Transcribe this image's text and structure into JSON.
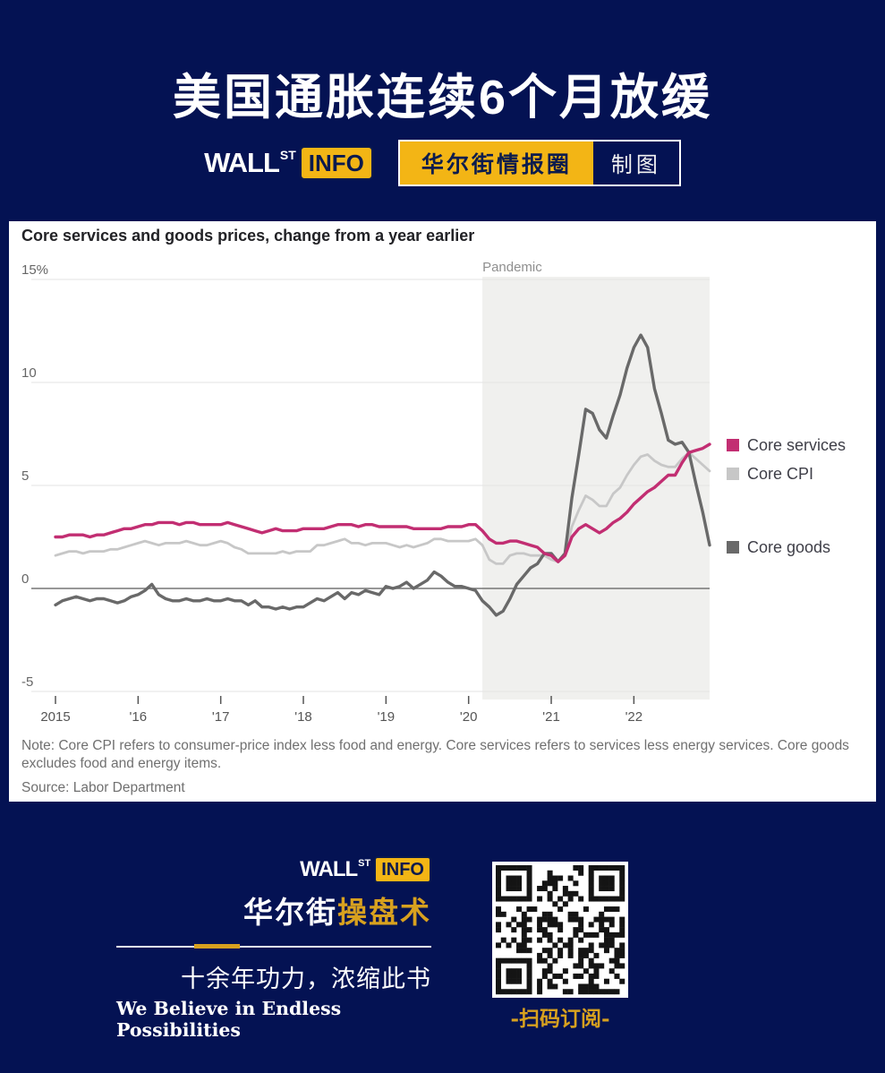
{
  "colors": {
    "background": "#041253",
    "yellow": "#f3b515",
    "gold": "#d8a11f",
    "panel": "#ffffff",
    "pink": "#c22e72",
    "light_gray": "#c7c7c7",
    "dark_gray": "#696969",
    "pandemic_shade": "#f0f0ee"
  },
  "header": {
    "title": "美国通胀连续6个月放缓",
    "logo": {
      "wall": "WALL",
      "st": "ST",
      "info": "INFO"
    },
    "brand_name": "华尔街情报圈",
    "brand_suffix": "制图"
  },
  "chart_panel": {
    "title": "Core services and goods prices, change from a year earlier",
    "note": "Note: Core CPI refers to consumer-price index less food and energy. Core services refers to services less energy services. Core goods excludes food and energy items.",
    "source": "Source: Labor Department"
  },
  "chart_data": {
    "type": "line",
    "title": "Core services and goods prices, change from a year earlier",
    "x_unit": "monthly, Jan 2015 – Dec 2022",
    "xticks": [
      "2015",
      "'16",
      "'17",
      "'18",
      "'19",
      "'20",
      "'21",
      "'22"
    ],
    "yticks": [
      {
        "label": "15%",
        "value": 15
      },
      {
        "label": "10",
        "value": 10
      },
      {
        "label": "5",
        "value": 5
      },
      {
        "label": "0",
        "value": 0
      },
      {
        "label": "-5",
        "value": -5
      }
    ],
    "ylim": [
      -5,
      15
    ],
    "grid": true,
    "legend_position": "right",
    "pandemic": {
      "label": "Pandemic",
      "start_index": 62,
      "fill": "#f0f0ee"
    },
    "series": [
      {
        "name": "Core services",
        "color": "#c22e72",
        "width": 3.4,
        "values": [
          2.5,
          2.5,
          2.6,
          2.6,
          2.6,
          2.5,
          2.6,
          2.6,
          2.7,
          2.8,
          2.9,
          2.9,
          3.0,
          3.1,
          3.1,
          3.2,
          3.2,
          3.2,
          3.1,
          3.2,
          3.2,
          3.1,
          3.1,
          3.1,
          3.1,
          3.2,
          3.1,
          3.0,
          2.9,
          2.8,
          2.7,
          2.8,
          2.9,
          2.8,
          2.8,
          2.8,
          2.9,
          2.9,
          2.9,
          2.9,
          3.0,
          3.1,
          3.1,
          3.1,
          3.0,
          3.1,
          3.1,
          3.0,
          3.0,
          3.0,
          3.0,
          3.0,
          2.9,
          2.9,
          2.9,
          2.9,
          2.9,
          3.0,
          3.0,
          3.0,
          3.1,
          3.1,
          2.8,
          2.4,
          2.2,
          2.2,
          2.3,
          2.3,
          2.2,
          2.1,
          2.0,
          1.7,
          1.6,
          1.3,
          1.6,
          2.5,
          2.9,
          3.1,
          2.9,
          2.7,
          2.9,
          3.2,
          3.4,
          3.7,
          4.1,
          4.4,
          4.7,
          4.9,
          5.2,
          5.5,
          5.5,
          6.1,
          6.6,
          6.7,
          6.8,
          7.0
        ]
      },
      {
        "name": "Core CPI",
        "color": "#c7c7c7",
        "width": 2.8,
        "values": [
          1.6,
          1.7,
          1.8,
          1.8,
          1.7,
          1.8,
          1.8,
          1.8,
          1.9,
          1.9,
          2.0,
          2.1,
          2.2,
          2.3,
          2.2,
          2.1,
          2.2,
          2.2,
          2.2,
          2.3,
          2.2,
          2.1,
          2.1,
          2.2,
          2.3,
          2.2,
          2.0,
          1.9,
          1.7,
          1.7,
          1.7,
          1.7,
          1.7,
          1.8,
          1.7,
          1.8,
          1.8,
          1.8,
          2.1,
          2.1,
          2.2,
          2.3,
          2.4,
          2.2,
          2.2,
          2.1,
          2.2,
          2.2,
          2.2,
          2.1,
          2.0,
          2.1,
          2.0,
          2.1,
          2.2,
          2.4,
          2.4,
          2.3,
          2.3,
          2.3,
          2.3,
          2.4,
          2.1,
          1.4,
          1.2,
          1.2,
          1.6,
          1.7,
          1.7,
          1.6,
          1.6,
          1.6,
          1.4,
          1.3,
          1.6,
          3.0,
          3.8,
          4.5,
          4.3,
          4.0,
          4.0,
          4.6,
          4.9,
          5.5,
          6.0,
          6.4,
          6.5,
          6.2,
          6.0,
          5.9,
          5.9,
          6.3,
          6.6,
          6.3,
          6.0,
          5.7
        ]
      },
      {
        "name": "Core goods",
        "color": "#696969",
        "width": 3.4,
        "values": [
          -0.8,
          -0.6,
          -0.5,
          -0.4,
          -0.5,
          -0.6,
          -0.5,
          -0.5,
          -0.6,
          -0.7,
          -0.6,
          -0.4,
          -0.3,
          -0.1,
          0.2,
          -0.3,
          -0.5,
          -0.6,
          -0.6,
          -0.5,
          -0.6,
          -0.6,
          -0.5,
          -0.6,
          -0.6,
          -0.5,
          -0.6,
          -0.6,
          -0.8,
          -0.6,
          -0.9,
          -0.9,
          -1.0,
          -0.9,
          -1.0,
          -0.9,
          -0.9,
          -0.7,
          -0.5,
          -0.6,
          -0.4,
          -0.2,
          -0.5,
          -0.2,
          -0.3,
          -0.1,
          -0.2,
          -0.3,
          0.1,
          0.0,
          0.1,
          0.3,
          0.0,
          0.2,
          0.4,
          0.8,
          0.6,
          0.3,
          0.1,
          0.1,
          0.0,
          -0.1,
          -0.6,
          -0.9,
          -1.3,
          -1.1,
          -0.5,
          0.2,
          0.6,
          1.0,
          1.2,
          1.7,
          1.7,
          1.3,
          1.7,
          4.4,
          6.5,
          8.7,
          8.5,
          7.7,
          7.3,
          8.4,
          9.4,
          10.7,
          11.7,
          12.3,
          11.7,
          9.7,
          8.5,
          7.2,
          7.0,
          7.1,
          6.6,
          5.1,
          3.7,
          2.1
        ]
      }
    ]
  },
  "footer": {
    "logo": {
      "wall": "WALL",
      "st": "ST",
      "info": "INFO"
    },
    "brand_white": "华尔街",
    "brand_gold": "操盘术",
    "slogan_cn": "十余年功力，浓缩此书",
    "slogan_en": "We Believe in Endless Possibilities",
    "qr_caption": "-扫码订阅-"
  }
}
